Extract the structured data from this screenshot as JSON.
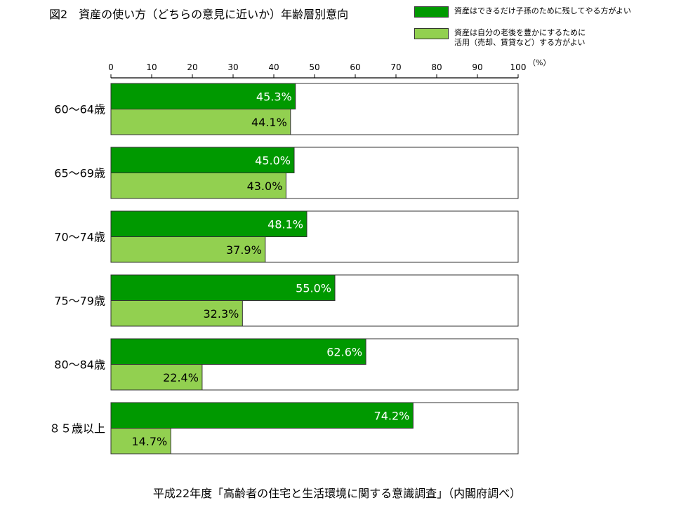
{
  "title": "図2　資産の使い方（どちらの意見に近いか）年齢層別意向",
  "source": "平成22年度「高齢者の住宅と生活環境に関する意識調査」（内閣府調べ）",
  "colors": {
    "series1": "#009900",
    "series2": "#92D050",
    "label_light": "#ffffff",
    "label_dark": "#000000"
  },
  "chart_data": {
    "type": "bar",
    "orientation": "horizontal",
    "title": "図2　資産の使い方（どちらの意見に近いか）年齢層別意向",
    "categories": [
      "60～64歳",
      "65～69歳",
      "70～74歳",
      "75～79歳",
      "80～84歳",
      "８５歳以上"
    ],
    "series": [
      {
        "name": "資産はできるだけ子孫のために残してやる方がよい",
        "values": [
          45.3,
          45.0,
          48.1,
          55.0,
          62.6,
          74.2
        ],
        "labels": [
          "45.3%",
          "45.0%",
          "48.1%",
          "55.0%",
          "62.6%",
          "74.2%"
        ]
      },
      {
        "name": "資産は自分の老後を豊かにするために\n活用（売却、賃貸など）する方がよい",
        "values": [
          44.1,
          43.0,
          37.9,
          32.3,
          22.4,
          14.7
        ],
        "labels": [
          "44.1%",
          "43.0%",
          "37.9%",
          "32.3%",
          "22.4%",
          "14.7%"
        ]
      }
    ],
    "xlim": [
      0,
      100
    ],
    "x_ticks": [
      "0",
      "10",
      "20",
      "30",
      "40",
      "50",
      "60",
      "70",
      "80",
      "90",
      "100"
    ],
    "unit_label": "（%）",
    "legend_position": "top-right",
    "grid": false
  }
}
